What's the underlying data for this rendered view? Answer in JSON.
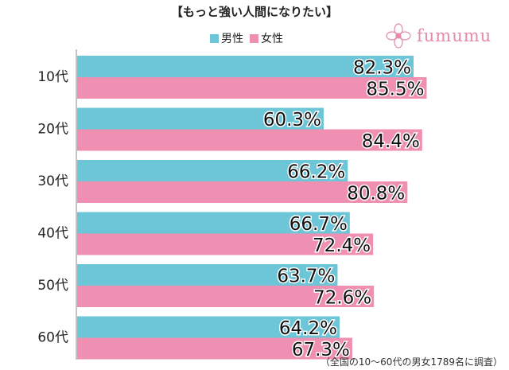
{
  "chart_data": {
    "type": "bar",
    "orientation": "horizontal",
    "title": "【もっと強い人間になりたい】",
    "categories": [
      "10代",
      "20代",
      "30代",
      "40代",
      "50代",
      "60代"
    ],
    "series": [
      {
        "name": "男性",
        "color": "#6cc6d7",
        "values": [
          82.3,
          60.3,
          66.2,
          66.7,
          63.7,
          64.2
        ]
      },
      {
        "name": "女性",
        "color": "#ef8fb2",
        "values": [
          85.5,
          84.4,
          80.8,
          72.4,
          72.6,
          67.3
        ]
      }
    ],
    "data_labels": {
      "男性": [
        "82.3%",
        "60.3%",
        "66.2%",
        "66.7%",
        "63.7%",
        "64.2%"
      ],
      "女性": [
        "85.5%",
        "84.4%",
        "80.8%",
        "72.4%",
        "72.6%",
        "67.3%"
      ]
    },
    "xlim": [
      0,
      100
    ],
    "xlabel": "",
    "ylabel": "",
    "grid": false,
    "legend_position": "top-center"
  },
  "legend": {
    "male_label": "男性",
    "female_label": "女性"
  },
  "logo": {
    "text": "fumumu",
    "icon": "flower-icon"
  },
  "footnote": "（全国の10〜60代の男女1789名に調査）"
}
